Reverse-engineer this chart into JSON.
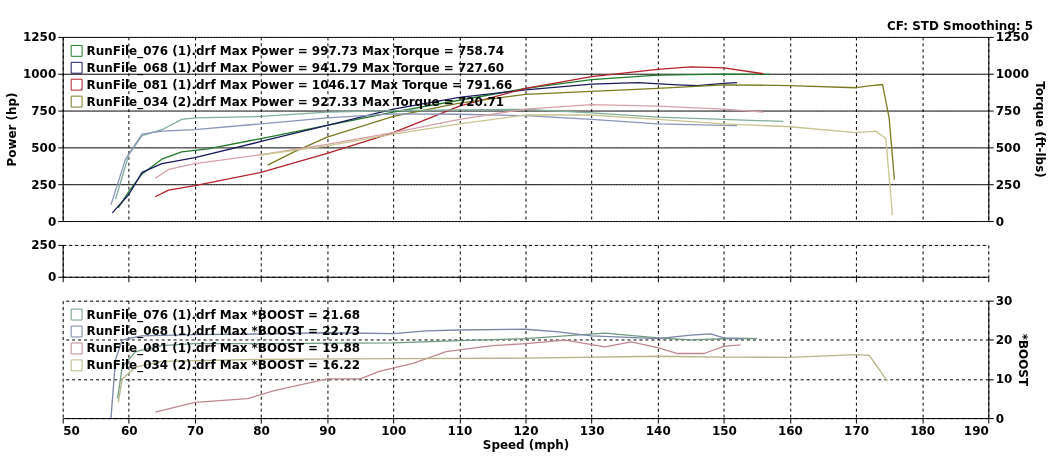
{
  "chart_data": [
    {
      "type": "line",
      "ylabel": "Power (hp)",
      "y2label": "Torque (ft-lbs)",
      "annotations": [
        "CF: STD  Smoothing: 5"
      ],
      "xlim": [
        50,
        190
      ],
      "xticks": [
        50,
        60,
        70,
        80,
        90,
        100,
        110,
        120,
        130,
        140,
        150,
        160,
        170,
        180,
        190
      ],
      "ylim": [
        0,
        1250
      ],
      "yticks": [
        0,
        250,
        500,
        750,
        1000,
        1250
      ],
      "y2lim": [
        0,
        1250
      ],
      "y2ticks": [
        0,
        250,
        500,
        750,
        1000,
        1250
      ],
      "grid": true,
      "legend": "top left",
      "tick_labels": "y",
      "series": [
        {
          "name": "RunFile_076 (1).drf Max Power = 997.73    Max Torque = 758.74",
          "color": "#1f7a2a",
          "x": [
            58.4,
            60,
            62,
            65,
            68,
            72,
            80,
            90,
            100,
            110,
            120,
            130,
            140,
            150,
            157
          ],
          "values": [
            90,
            200,
            320,
            420,
            470,
            490,
            560,
            650,
            740,
            820,
            900,
            960,
            990,
            998,
            995
          ]
        },
        {
          "name": "RunFile_068 (1).drf Max Power = 941.79    Max Torque = 727.60",
          "color": "#1a1a5e",
          "x": [
            57.5,
            60,
            62,
            65,
            70,
            80,
            90,
            100,
            110,
            120,
            130,
            137,
            143,
            146,
            150,
            152
          ],
          "values": [
            55,
            180,
            330,
            390,
            430,
            540,
            650,
            760,
            840,
            890,
            930,
            940,
            925,
            920,
            935,
            940
          ]
        },
        {
          "name": "RunFile_081 (1).drf Max Power = 1046.17    Max Torque = 791.66",
          "color": "#b3202a",
          "x": [
            64,
            66,
            70,
            80,
            90,
            100,
            110,
            120,
            130,
            140,
            145,
            150,
            156
          ],
          "values": [
            165,
            210,
            240,
            330,
            460,
            600,
            780,
            900,
            980,
            1030,
            1046,
            1040,
            1000
          ]
        },
        {
          "name": "RunFile_034 (2).drf Max Power = 927.33    Max Torque = 720.71",
          "color": "#7a7a20",
          "x": [
            81,
            85,
            90,
            100,
            110,
            120,
            130,
            140,
            150,
            160,
            170,
            172,
            174,
            175,
            175.8
          ],
          "values": [
            380,
            470,
            570,
            710,
            800,
            860,
            880,
            900,
            925,
            920,
            905,
            918,
            927,
            700,
            280
          ]
        },
        {
          "color": "#7fae9a",
          "axis": "y2",
          "x": [
            58,
            60,
            62,
            65,
            68,
            70,
            80,
            90,
            100,
            110,
            120,
            130,
            140,
            150,
            159
          ],
          "values": [
            150,
            450,
            580,
            620,
            690,
            700,
            710,
            740,
            750,
            755,
            758,
            735,
            705,
            690,
            676
          ]
        },
        {
          "color": "#8a95b8",
          "axis": "y2",
          "x": [
            57.3,
            59.5,
            62,
            65,
            70,
            80,
            90,
            100,
            110,
            120,
            130,
            140,
            150,
            152
          ],
          "values": [
            110,
            420,
            590,
            610,
            620,
            660,
            700,
            727,
            725,
            715,
            690,
            660,
            650,
            648
          ]
        },
        {
          "color": "#d8a0a8",
          "axis": "y2",
          "x": [
            64,
            66,
            70,
            80,
            90,
            100,
            110,
            120,
            130,
            140,
            150,
            156
          ],
          "values": [
            290,
            350,
            390,
            450,
            520,
            600,
            690,
            760,
            790,
            780,
            760,
            740
          ]
        },
        {
          "color": "#c8c490",
          "axis": "y2",
          "x": [
            80,
            90,
            100,
            110,
            120,
            130,
            140,
            150,
            160,
            170,
            173,
            174.5,
            175.5
          ],
          "values": [
            450,
            510,
            590,
            660,
            720,
            720,
            690,
            660,
            640,
            600,
            610,
            560,
            40
          ]
        }
      ]
    },
    {
      "type": "line",
      "xlim": [
        50,
        190
      ],
      "xticks": [
        50,
        60,
        70,
        80,
        90,
        100,
        110,
        120,
        130,
        140,
        150,
        160,
        170,
        180,
        190
      ],
      "ylim": [
        0,
        250
      ],
      "yticks": [
        0,
        250
      ],
      "grid": true,
      "tick_labels": "y"
    },
    {
      "type": "line",
      "xlabel": "Speed (mph)",
      "y2label": "*BOOST",
      "xlim": [
        50,
        190
      ],
      "xticks": [
        50,
        60,
        70,
        80,
        90,
        100,
        110,
        120,
        130,
        140,
        150,
        160,
        170,
        180,
        190
      ],
      "y2lim": [
        0,
        30
      ],
      "y2ticks": [
        0,
        10,
        20,
        30
      ],
      "grid": true,
      "legend": "top left",
      "series": [
        {
          "name": "RunFile_076 (1).drf Max *BOOST = 21.68",
          "color": "#6f9a80",
          "axis": "y2",
          "x": [
            58.3,
            59,
            61,
            65,
            70,
            80,
            100,
            110,
            120,
            126,
            132,
            140,
            145,
            152,
            155
          ],
          "values": [
            5,
            13,
            17,
            18.5,
            19,
            19,
            19.2,
            19.8,
            20.3,
            21,
            21.7,
            20.5,
            20,
            20.4,
            20.3
          ]
        },
        {
          "name": "RunFile_068 (1).drf Max *BOOST = 22.73",
          "color": "#7a85a8",
          "axis": "y2",
          "x": [
            57.3,
            58,
            59,
            62,
            70,
            80,
            90,
            100,
            105,
            110,
            120,
            125,
            130,
            140,
            145,
            148,
            150,
            153
          ],
          "values": [
            0,
            15,
            20,
            21,
            21.3,
            21.5,
            21.8,
            21.6,
            22.3,
            22.5,
            22.7,
            22,
            21,
            20.3,
            21.2,
            21.5,
            20.5,
            20.2
          ]
        },
        {
          "name": "RunFile_081 (1).drf Max *BOOST = 19.88",
          "color": "#c08890",
          "axis": "y2",
          "x": [
            64,
            70,
            78,
            82,
            90,
            95,
            98,
            103,
            108,
            115,
            120,
            126,
            132,
            136,
            140,
            143,
            147,
            150,
            152.5
          ],
          "values": [
            1.5,
            4,
            5,
            7,
            10,
            10,
            12,
            14,
            17,
            18.5,
            19,
            19.9,
            18.2,
            19.5,
            18,
            16.5,
            16.5,
            18.3,
            18.7
          ]
        },
        {
          "name": "RunFile_034 (2).drf Max *BOOST = 16.22",
          "color": "#b8b488",
          "axis": "y2",
          "x": [
            58.4,
            59,
            61,
            65,
            80,
            100,
            120,
            140,
            150,
            160,
            170,
            172,
            174.7
          ],
          "values": [
            4,
            10,
            13,
            14.5,
            15,
            15.2,
            15.3,
            15.8,
            15.6,
            15.5,
            16.2,
            16,
            9.5
          ]
        }
      ]
    }
  ]
}
